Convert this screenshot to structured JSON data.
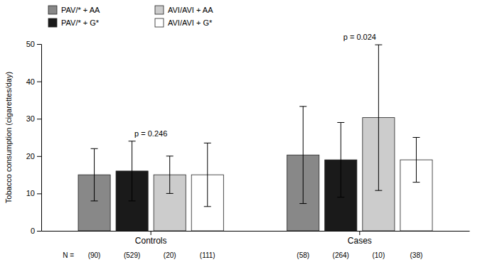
{
  "chart_data": {
    "type": "bar",
    "categories": [
      "Controls",
      "Cases"
    ],
    "series": [
      {
        "name": "PAV/* + AA",
        "color": "#888888",
        "values": [
          15.0,
          20.3
        ],
        "errors": [
          7.0,
          13.0
        ],
        "n_labels": [
          "(90)",
          "(58)"
        ]
      },
      {
        "name": "PAV/* + G*",
        "color": "#1a1a1a",
        "values": [
          16.0,
          19.0
        ],
        "errors": [
          8.0,
          10.0
        ],
        "n_labels": [
          "(529)",
          "(264)"
        ]
      },
      {
        "name": "AVI/AVI + AA",
        "color": "#cccccc",
        "values": [
          15.0,
          30.3
        ],
        "errors": [
          5.0,
          19.5
        ],
        "n_labels": [
          "(20)",
          "(10)"
        ]
      },
      {
        "name": "AVI/AVI + G*",
        "color": "#ffffff",
        "values": [
          15.0,
          19.0
        ],
        "errors": [
          8.5,
          6.0
        ],
        "n_labels": [
          "(111)",
          "(38)"
        ]
      }
    ],
    "n_labels_title": "N =",
    "annotations": [
      {
        "text": "p = 0.246",
        "category": "Controls"
      },
      {
        "text": "p = 0.024",
        "category": "Cases"
      }
    ],
    "ylabel": "Tobacco consumption (cigarettes/day)",
    "ylim": [
      0,
      50
    ],
    "yticks": [
      0,
      10,
      20,
      30,
      40,
      50
    ],
    "grid": false,
    "legend": "top"
  }
}
